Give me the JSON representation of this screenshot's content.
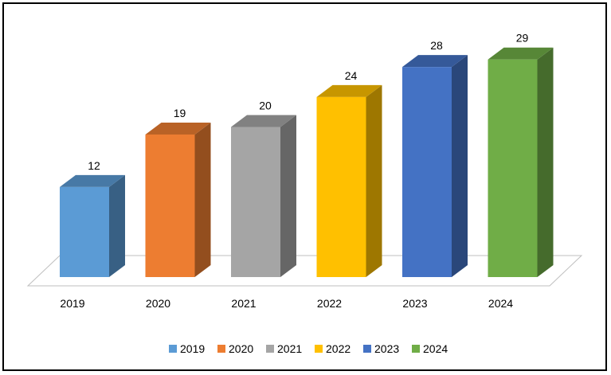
{
  "chart_data": {
    "type": "bar",
    "style": "3d-column",
    "categories": [
      "2019",
      "2020",
      "2021",
      "2022",
      "2023",
      "2024"
    ],
    "series": [
      {
        "name": "2019",
        "values": [
          12,
          null,
          null,
          null,
          null,
          null
        ],
        "color": "#5B9BD5"
      },
      {
        "name": "2020",
        "values": [
          null,
          19,
          null,
          null,
          null,
          null
        ],
        "color": "#ED7D31"
      },
      {
        "name": "2021",
        "values": [
          null,
          null,
          20,
          null,
          null,
          null
        ],
        "color": "#A5A5A5"
      },
      {
        "name": "2022",
        "values": [
          null,
          null,
          null,
          24,
          null,
          null
        ],
        "color": "#FFC000"
      },
      {
        "name": "2023",
        "values": [
          null,
          null,
          null,
          null,
          28,
          null
        ],
        "color": "#4472C4"
      },
      {
        "name": "2024",
        "values": [
          null,
          null,
          null,
          null,
          null,
          29
        ],
        "color": "#70AD47"
      }
    ],
    "values": [
      12,
      19,
      20,
      24,
      28,
      29
    ],
    "data_labels": [
      "12",
      "19",
      "20",
      "24",
      "28",
      "29"
    ],
    "title": "",
    "xlabel": "",
    "ylabel": "",
    "ylim": [
      0,
      29.5
    ],
    "grid": false,
    "legend_position": "bottom"
  }
}
